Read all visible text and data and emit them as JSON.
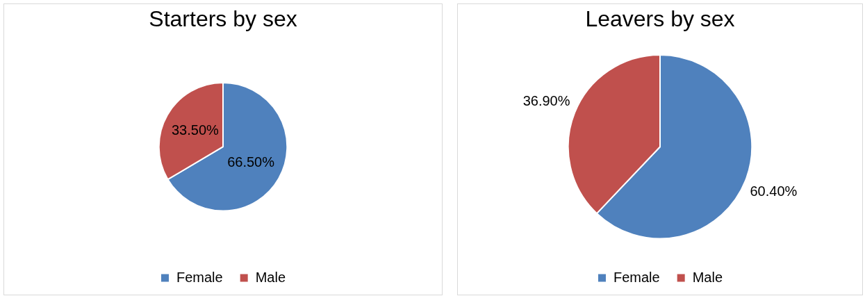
{
  "chart_data": [
    {
      "type": "pie",
      "title": "Starters by sex",
      "categories": [
        "Female",
        "Male"
      ],
      "values": [
        66.5,
        33.5
      ],
      "colors": [
        "#4f81bd",
        "#c0504d"
      ],
      "value_labels": [
        "66.50%",
        "33.50%"
      ],
      "legend": "bottom"
    },
    {
      "type": "pie",
      "title": "Leavers by sex",
      "categories": [
        "Female",
        "Male"
      ],
      "values": [
        60.4,
        36.9
      ],
      "colors": [
        "#4f81bd",
        "#c0504d"
      ],
      "value_labels": [
        "60.40%",
        "36.90%"
      ],
      "legend": "bottom"
    }
  ]
}
